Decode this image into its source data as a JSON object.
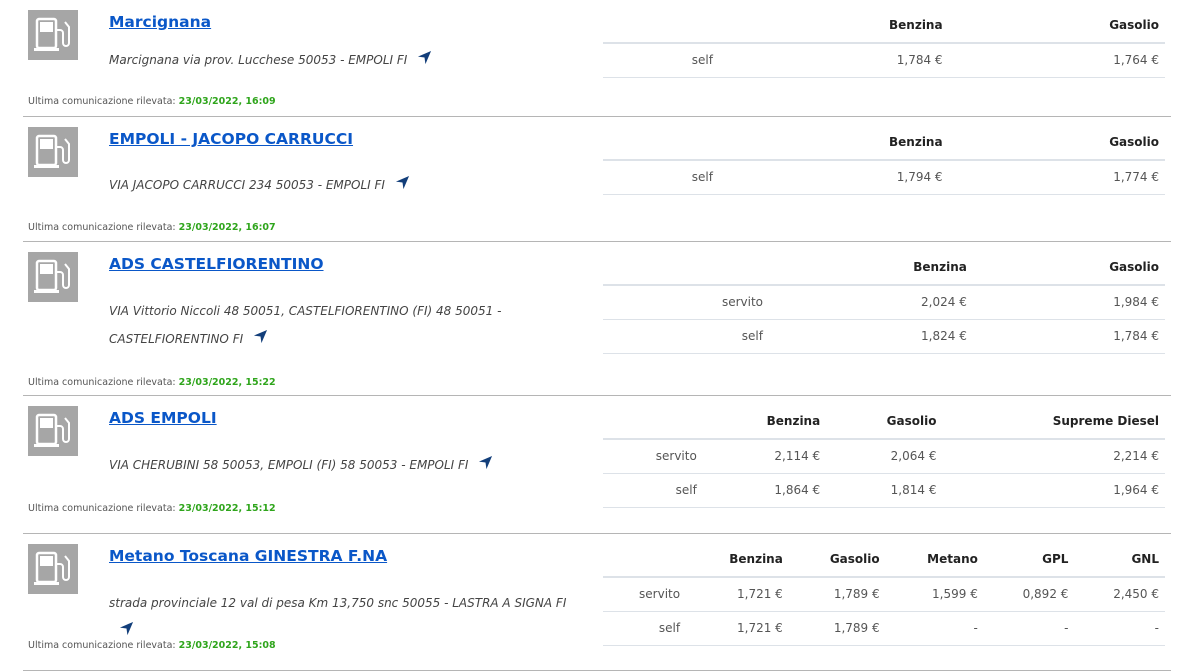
{
  "last_comm_label": "Ultima comunicazione rilevata:",
  "stations": [
    {
      "name": "Marcignana",
      "address": "Marcignana via prov. Lucchese 50053 - EMPOLI FI",
      "last_update": "23/03/2022, 16:09",
      "fuels": [
        "Benzina",
        "Gasolio"
      ],
      "rows": [
        {
          "mode": "self",
          "prices": [
            "1,784 €",
            "1,764 €"
          ]
        }
      ]
    },
    {
      "name": "EMPOLI - JACOPO CARRUCCI",
      "address": "VIA JACOPO CARRUCCI 234 50053 - EMPOLI FI",
      "last_update": "23/03/2022, 16:07",
      "fuels": [
        "Benzina",
        "Gasolio"
      ],
      "rows": [
        {
          "mode": "self",
          "prices": [
            "1,794 €",
            "1,774 €"
          ]
        }
      ]
    },
    {
      "name": "ADS CASTELFIORENTINO",
      "address": "VIA Vittorio Niccoli 48 50051, CASTELFIORENTINO (FI) 48 50051 - CASTELFIORENTINO FI",
      "last_update": "23/03/2022, 15:22",
      "fuels": [
        "Benzina",
        "Gasolio"
      ],
      "rows": [
        {
          "mode": "servito",
          "prices": [
            "2,024 €",
            "1,984 €"
          ]
        },
        {
          "mode": "self",
          "prices": [
            "1,824 €",
            "1,784 €"
          ]
        }
      ]
    },
    {
      "name": "ADS EMPOLI",
      "address": "VIA CHERUBINI 58 50053, EMPOLI (FI) 58 50053 - EMPOLI FI",
      "last_update": "23/03/2022, 15:12",
      "fuels": [
        "Benzina",
        "Gasolio",
        "Supreme Diesel"
      ],
      "rows": [
        {
          "mode": "servito",
          "prices": [
            "2,114 €",
            "2,064 €",
            "2,214 €"
          ]
        },
        {
          "mode": "self",
          "prices": [
            "1,864 €",
            "1,814 €",
            "1,964 €"
          ]
        }
      ]
    },
    {
      "name": "Metano Toscana GINESTRA F.NA",
      "address": "strada provinciale 12 val di pesa Km 13,750 snc 50055 - LASTRA A SIGNA FI",
      "last_update": "23/03/2022, 15:08",
      "fuels": [
        "Benzina",
        "Gasolio",
        "Metano",
        "GPL",
        "GNL"
      ],
      "rows": [
        {
          "mode": "servito",
          "prices": [
            "1,721 €",
            "1,789 €",
            "1,599 €",
            "0,892 €",
            "2,450 €"
          ]
        },
        {
          "mode": "self",
          "prices": [
            "1,721 €",
            "1,789 €",
            "-",
            "-",
            "-"
          ]
        }
      ]
    }
  ],
  "colors": {
    "link": "#0a57c8",
    "timestamp": "#2fa51c",
    "icon_bg": "#a6a6a6",
    "nav_icon": "#123e7a"
  }
}
